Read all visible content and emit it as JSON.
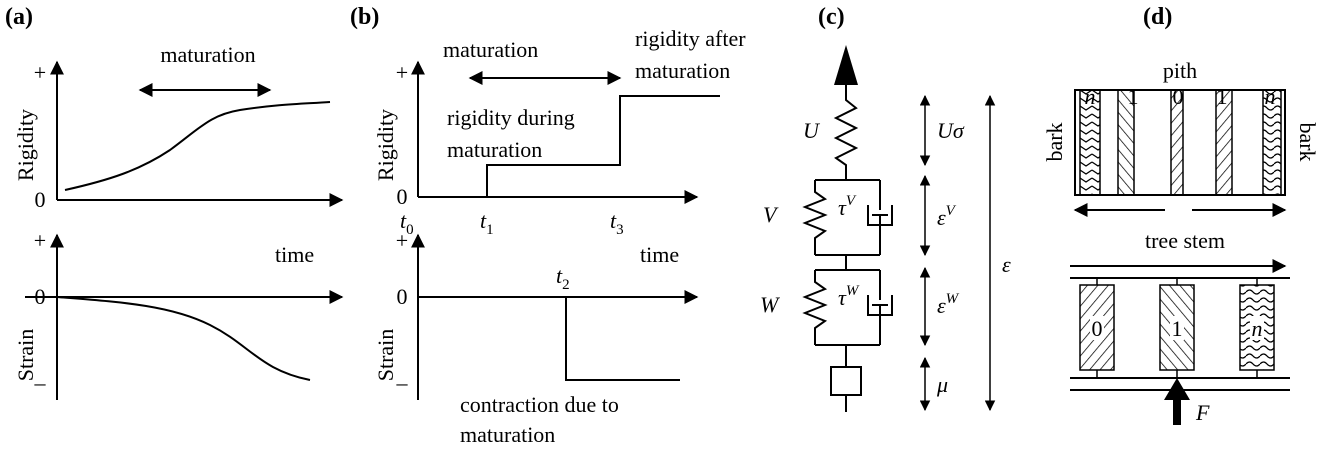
{
  "panel_a": {
    "label": "(a)",
    "arrow_label": "maturation",
    "top_axis": {
      "y_label": "Rigidity",
      "plus": "+",
      "zero": "0"
    },
    "x_label": "time",
    "bottom_axis": {
      "y_label": "Strain",
      "plus": "+",
      "zero": "0",
      "minus": "–"
    }
  },
  "panel_b": {
    "label": "(b)",
    "arrow_label": "maturation",
    "after_label": [
      "rigidity after",
      "maturation"
    ],
    "during_label": [
      "rigidity during",
      "maturation"
    ],
    "top_axis": {
      "y_label": "Rigidity",
      "plus": "+",
      "zero": "0"
    },
    "ticks": {
      "t0": {
        "symbol": "t",
        "subscript": "0"
      },
      "t1": {
        "symbol": "t",
        "subscript": "1"
      },
      "t3": {
        "symbol": "t",
        "subscript": "3"
      },
      "t2": {
        "symbol": "t",
        "subscript": "2"
      }
    },
    "x_label": "time",
    "bottom_axis": {
      "y_label": "Strain",
      "plus": "+",
      "zero": "0",
      "minus": "–"
    },
    "contraction_label": [
      "contraction due to",
      "maturation"
    ]
  },
  "panel_c": {
    "label": "(c)",
    "U": "U",
    "V": "V",
    "W": "W",
    "tauV": {
      "symbol": "τ",
      "superscript": "V"
    },
    "tauW": {
      "symbol": "τ",
      "superscript": "W"
    },
    "U_sigma": "Uσ",
    "epsV": {
      "symbol": "ε",
      "superscript": "V"
    },
    "epsW": {
      "symbol": "ε",
      "superscript": "W"
    },
    "mu": "μ",
    "eps": "ε"
  },
  "panel_d": {
    "label": "(d)",
    "pith": "pith",
    "ring_labels": [
      "n",
      "1",
      "0",
      "1",
      "n"
    ],
    "bark_left": "bark",
    "bark_right": "bark",
    "tree_stem": "tree stem",
    "box_labels": [
      "0",
      "1",
      "n"
    ],
    "force": "F"
  }
}
